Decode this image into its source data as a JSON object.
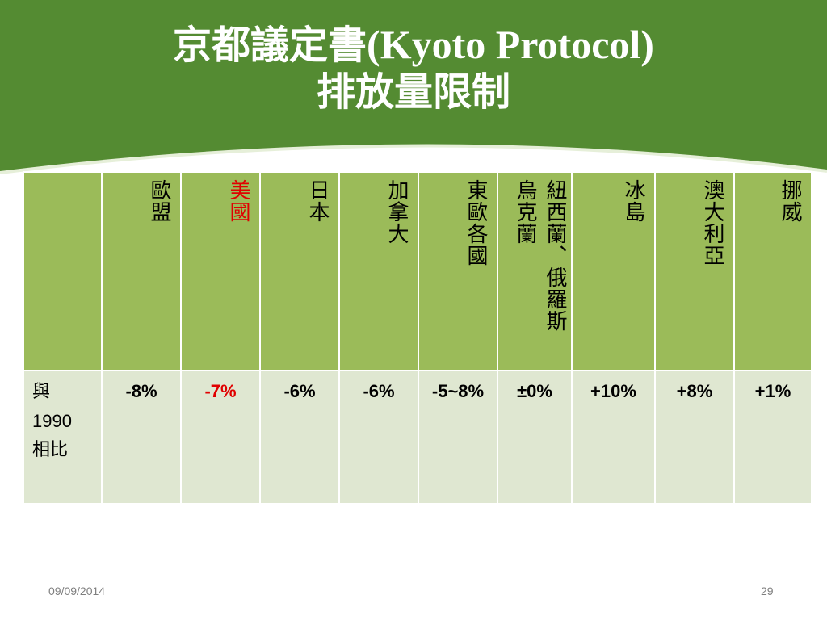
{
  "slide": {
    "title_line1_cjk": "京都議定書",
    "title_line1_latin": "(Kyoto Protocol)",
    "title_line2": "排放量限制"
  },
  "table": {
    "row_label_char1": "與",
    "row_label_num": "1990",
    "row_label_char2": "相比",
    "columns": [
      {
        "header": "歐盟",
        "value": "-8%",
        "highlight": false
      },
      {
        "header": "美國",
        "value": "-7%",
        "highlight": true
      },
      {
        "header": "日本",
        "value": "-6%",
        "highlight": false
      },
      {
        "header": "加拿大",
        "value": "-6%",
        "highlight": false
      },
      {
        "header": "東歐各國",
        "value": "-5~8%",
        "highlight": false
      },
      {
        "header": "紐西蘭、俄羅斯、烏克蘭",
        "header_col1": "紐西蘭、俄羅斯",
        "header_col2": "烏克蘭",
        "value": "±0%",
        "highlight": false
      },
      {
        "header": "冰島",
        "value": "+10%",
        "highlight": false
      },
      {
        "header": "澳大利亞",
        "value": "+8%",
        "highlight": false
      },
      {
        "header": "挪威",
        "value": "+1%",
        "highlight": false
      }
    ]
  },
  "footer": {
    "date": "09/09/2014",
    "page": "29"
  },
  "colors": {
    "banner": "#548b32",
    "header_cell": "#9bbb59",
    "value_cell": "#dfe7d1",
    "highlight_text": "#e00000"
  }
}
